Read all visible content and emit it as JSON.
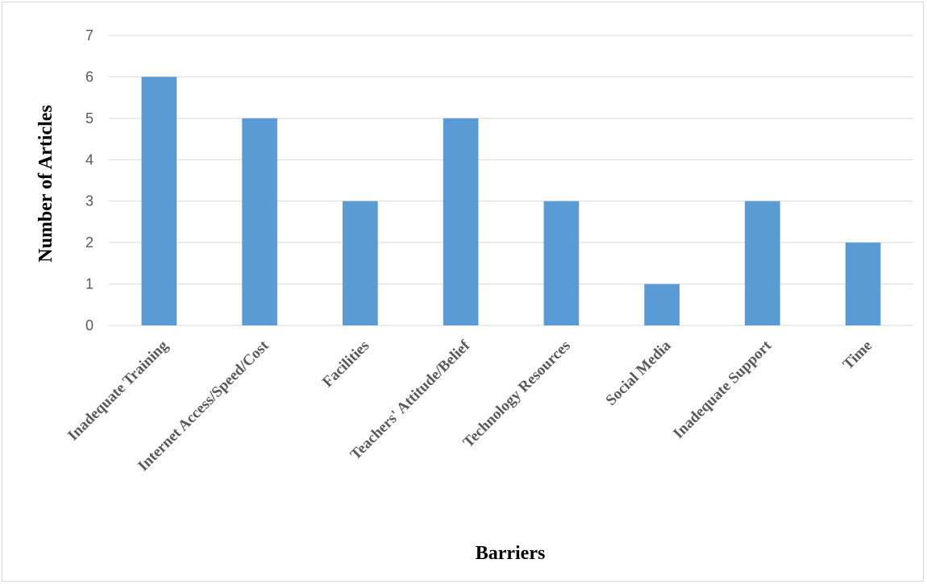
{
  "chart_data": {
    "type": "bar",
    "categories": [
      "Inadequate Training",
      "Internet Access/Speed/Cost",
      "Facilities",
      "Teachers' Attitude/Belief",
      "Technology Resources",
      "Social Media",
      "Inadequate Support",
      "Time"
    ],
    "values": [
      6,
      5,
      3,
      5,
      3,
      1,
      3,
      2
    ],
    "title": "",
    "xlabel": "Barriers",
    "ylabel": "Number of Articles",
    "ylim": [
      0,
      7
    ],
    "yticks": [
      0,
      1,
      2,
      3,
      4,
      5,
      6,
      7
    ],
    "bar_color": "#5b9bd5",
    "grid": true,
    "legend": "none"
  }
}
